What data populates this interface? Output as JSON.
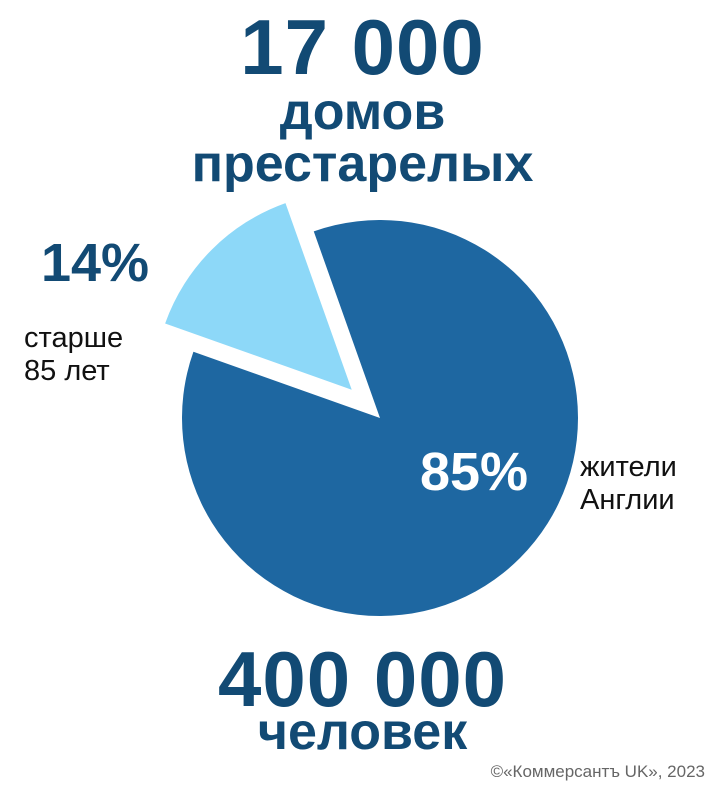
{
  "colors": {
    "large_slice": "#1e67a1",
    "small_slice": "#8dd8f8",
    "title_text": "#124a74"
  },
  "header": {
    "number": "17 000",
    "label_line1": "домов",
    "label_line2": "престарелых"
  },
  "footer": {
    "number": "400 000",
    "label": "человек"
  },
  "copyright": "©«Коммерсантъ UK», 2023",
  "chart_data": {
    "type": "pie",
    "exploded": true,
    "slices": [
      {
        "label": "14%",
        "value": 14,
        "description": [
          "старше",
          "85 лет"
        ],
        "color": "#8dd8f8"
      },
      {
        "label": "85%",
        "value": 85,
        "description": [
          "жители",
          "Англии"
        ],
        "color": "#1e67a1"
      }
    ]
  }
}
